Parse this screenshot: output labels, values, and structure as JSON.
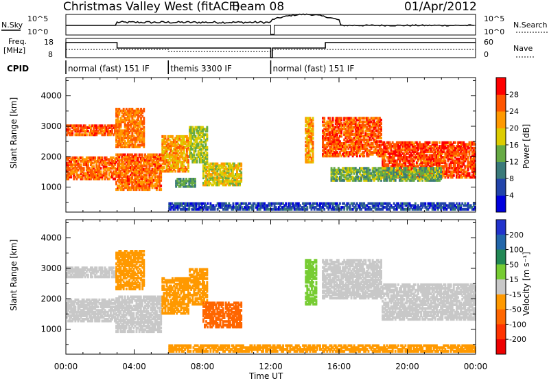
{
  "header": {
    "title": "Christmas Valley West (fitACF)",
    "beam": "Beam 08",
    "date": "01/Apr/2012"
  },
  "nsky_panel": {
    "left_label": "N.Sky",
    "left_ticks": [
      "10^5",
      "10^0"
    ],
    "right_ticks": [
      "10^5",
      "10^0"
    ],
    "right_label": "N.Search"
  },
  "freq_panel": {
    "left_label_1": "Freq.",
    "left_label_2": "[MHz]",
    "left_ticks": [
      "18",
      "8"
    ],
    "right_ticks": [
      "60",
      "0"
    ],
    "right_label": "Nave"
  },
  "cpid": {
    "label": "CPID",
    "segments": [
      {
        "text": "normal (fast) 151 IF",
        "start": 0,
        "end": 6
      },
      {
        "text": "themis 3300 IF",
        "start": 6,
        "end": 12
      },
      {
        "text": "normal (fast) 151 IF",
        "start": 12,
        "end": 24
      }
    ]
  },
  "chart_data": [
    {
      "type": "heatmap",
      "quantity": "Power",
      "ylabel": "Slant Range [km]",
      "ylim": [
        180,
        4600
      ],
      "yticks": [
        "1000",
        "2000",
        "3000",
        "4000"
      ],
      "colorbar_label": "Power [dB]",
      "colorbar_ticks": [
        "4",
        "8",
        "12",
        "16",
        "20",
        "24",
        "28"
      ],
      "colors": [
        "#0000dd",
        "#2244aa",
        "#3a7a7a",
        "#66aa44",
        "#ddcc00",
        "#ff9900",
        "#ff5500",
        "#ff0000"
      ],
      "bands": [
        {
          "t0": 0.0,
          "t1": 2.9,
          "r0": 2700,
          "r1": 3050,
          "v": 26
        },
        {
          "t0": 0.0,
          "t1": 2.9,
          "r0": 1250,
          "r1": 2000,
          "v": 25
        },
        {
          "t0": 2.9,
          "t1": 4.6,
          "r0": 2300,
          "r1": 3600,
          "v": 24
        },
        {
          "t0": 2.9,
          "t1": 5.6,
          "r0": 900,
          "r1": 2100,
          "v": 25
        },
        {
          "t0": 5.6,
          "t1": 7.2,
          "r0": 1500,
          "r1": 2700,
          "v": 22
        },
        {
          "t0": 7.2,
          "t1": 8.3,
          "r0": 1800,
          "r1": 3000,
          "v": 16
        },
        {
          "t0": 6.4,
          "t1": 7.6,
          "r0": 1000,
          "r1": 1300,
          "v": 12
        },
        {
          "t0": 8.0,
          "t1": 10.3,
          "r0": 1050,
          "r1": 1800,
          "v": 18
        },
        {
          "t0": 14.0,
          "t1": 14.5,
          "r0": 1800,
          "r1": 3300,
          "v": 22
        },
        {
          "t0": 15.0,
          "t1": 18.5,
          "r0": 2000,
          "r1": 3300,
          "v": 26
        },
        {
          "t0": 18.5,
          "t1": 24.0,
          "r0": 1300,
          "r1": 2500,
          "v": 27
        },
        {
          "t0": 15.5,
          "t1": 22.0,
          "r0": 1200,
          "r1": 1650,
          "v": 14
        },
        {
          "t0": 6.0,
          "t1": 24.0,
          "r0": 250,
          "r1": 500,
          "v": 6
        }
      ]
    },
    {
      "type": "heatmap",
      "quantity": "Velocity",
      "ylabel": "Slant Range [km]",
      "ylim": [
        180,
        4600
      ],
      "yticks": [
        "1000",
        "2000",
        "3000",
        "4000"
      ],
      "colorbar_label": "Velocity [m s⁻¹]",
      "colorbar_ticks": [
        "200",
        "100",
        "50",
        "15",
        "-15",
        "-50",
        "-100",
        "-200"
      ],
      "colors": [
        "#2233cc",
        "#2266aa",
        "#228855",
        "#77cc33",
        "#c8c8c8",
        "#ff9900",
        "#ff6600",
        "#ff3300",
        "#ee0000"
      ],
      "bands": [
        {
          "t0": 0.0,
          "t1": 2.9,
          "r0": 2700,
          "r1": 3050,
          "v": 0
        },
        {
          "t0": 0.0,
          "t1": 2.9,
          "r0": 1250,
          "r1": 2000,
          "v": 0
        },
        {
          "t0": 2.9,
          "t1": 4.6,
          "r0": 2300,
          "r1": 3600,
          "v": -30
        },
        {
          "t0": 2.9,
          "t1": 5.6,
          "r0": 900,
          "r1": 2100,
          "v": 0
        },
        {
          "t0": 5.6,
          "t1": 7.2,
          "r0": 1500,
          "r1": 2700,
          "v": -30
        },
        {
          "t0": 7.2,
          "t1": 8.3,
          "r0": 1800,
          "r1": 3000,
          "v": -30
        },
        {
          "t0": 8.0,
          "t1": 10.3,
          "r0": 1050,
          "r1": 1900,
          "v": -60
        },
        {
          "t0": 14.0,
          "t1": 14.7,
          "r0": 1800,
          "r1": 3300,
          "v": 30
        },
        {
          "t0": 15.0,
          "t1": 18.5,
          "r0": 2000,
          "r1": 3300,
          "v": 0
        },
        {
          "t0": 18.5,
          "t1": 24.0,
          "r0": 1300,
          "r1": 2500,
          "v": 0
        },
        {
          "t0": 6.0,
          "t1": 24.0,
          "r0": 250,
          "r1": 500,
          "v": -40
        }
      ]
    }
  ],
  "x_axis": {
    "ticks": [
      "00:00",
      "04:00",
      "08:00",
      "12:00",
      "16:00",
      "20:00",
      "00:00"
    ],
    "label": "Time UT",
    "range": [
      0,
      24
    ]
  }
}
